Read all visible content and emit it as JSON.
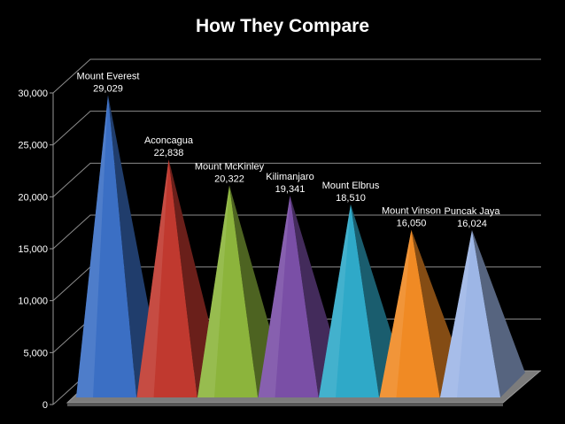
{
  "chart_data": {
    "type": "bar",
    "title": "How They Compare",
    "xlabel": "",
    "ylabel": "",
    "ylim": [
      0,
      30000
    ],
    "yticks": [
      0,
      5000,
      10000,
      15000,
      20000,
      25000,
      30000
    ],
    "ytick_labels": [
      "0",
      "5,000",
      "10,000",
      "15,000",
      "20,000",
      "25,000",
      "30,000"
    ],
    "grid": true,
    "legend": "none",
    "style": "3d-pyramid",
    "categories": [
      "Mount Everest",
      "Aconcagua",
      "Mount McKinley",
      "Kilimanjaro",
      "Mount Elbrus",
      "Mount Vinson",
      "Puncak Jaya"
    ],
    "values": [
      29029,
      22838,
      20322,
      19341,
      18510,
      16050,
      16024
    ],
    "value_labels": [
      "29,029",
      "22,838",
      "20,322",
      "19,341",
      "18,510",
      "16,050",
      "16,024"
    ],
    "colors": [
      "#3b6fc4",
      "#c0392f",
      "#8cb43c",
      "#7a4fa6",
      "#2fa9c8",
      "#f08a24",
      "#9db6e6"
    ]
  }
}
